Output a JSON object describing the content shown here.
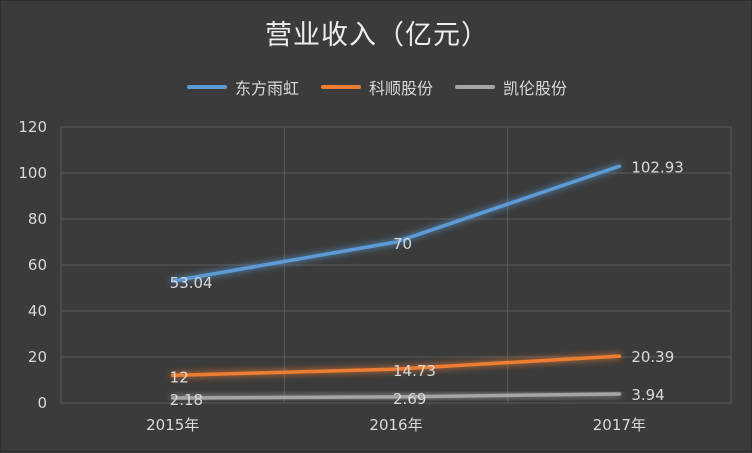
{
  "chart_data": {
    "type": "line",
    "title": "营业收入（亿元）",
    "xlabel": "",
    "ylabel": "",
    "categories": [
      "2015年",
      "2016年",
      "2017年"
    ],
    "ylim": [
      0,
      120
    ],
    "yticks": [
      0,
      20,
      40,
      60,
      80,
      100,
      120
    ],
    "grid": true,
    "legend_position": "top",
    "series": [
      {
        "name": "东方雨虹",
        "color": "#5b9bd5",
        "values": [
          53.04,
          70,
          102.93
        ],
        "labels": [
          "53.04",
          "70",
          "102.93"
        ]
      },
      {
        "name": "科顺股份",
        "color": "#ed7d31",
        "values": [
          12,
          14.73,
          20.39
        ],
        "labels": [
          "12",
          "14.73",
          "20.39"
        ]
      },
      {
        "name": "凯伦股份",
        "color": "#a5a5a5",
        "values": [
          2.18,
          2.69,
          3.94
        ],
        "labels": [
          "2.18",
          "2.69",
          "3.94"
        ]
      }
    ]
  }
}
